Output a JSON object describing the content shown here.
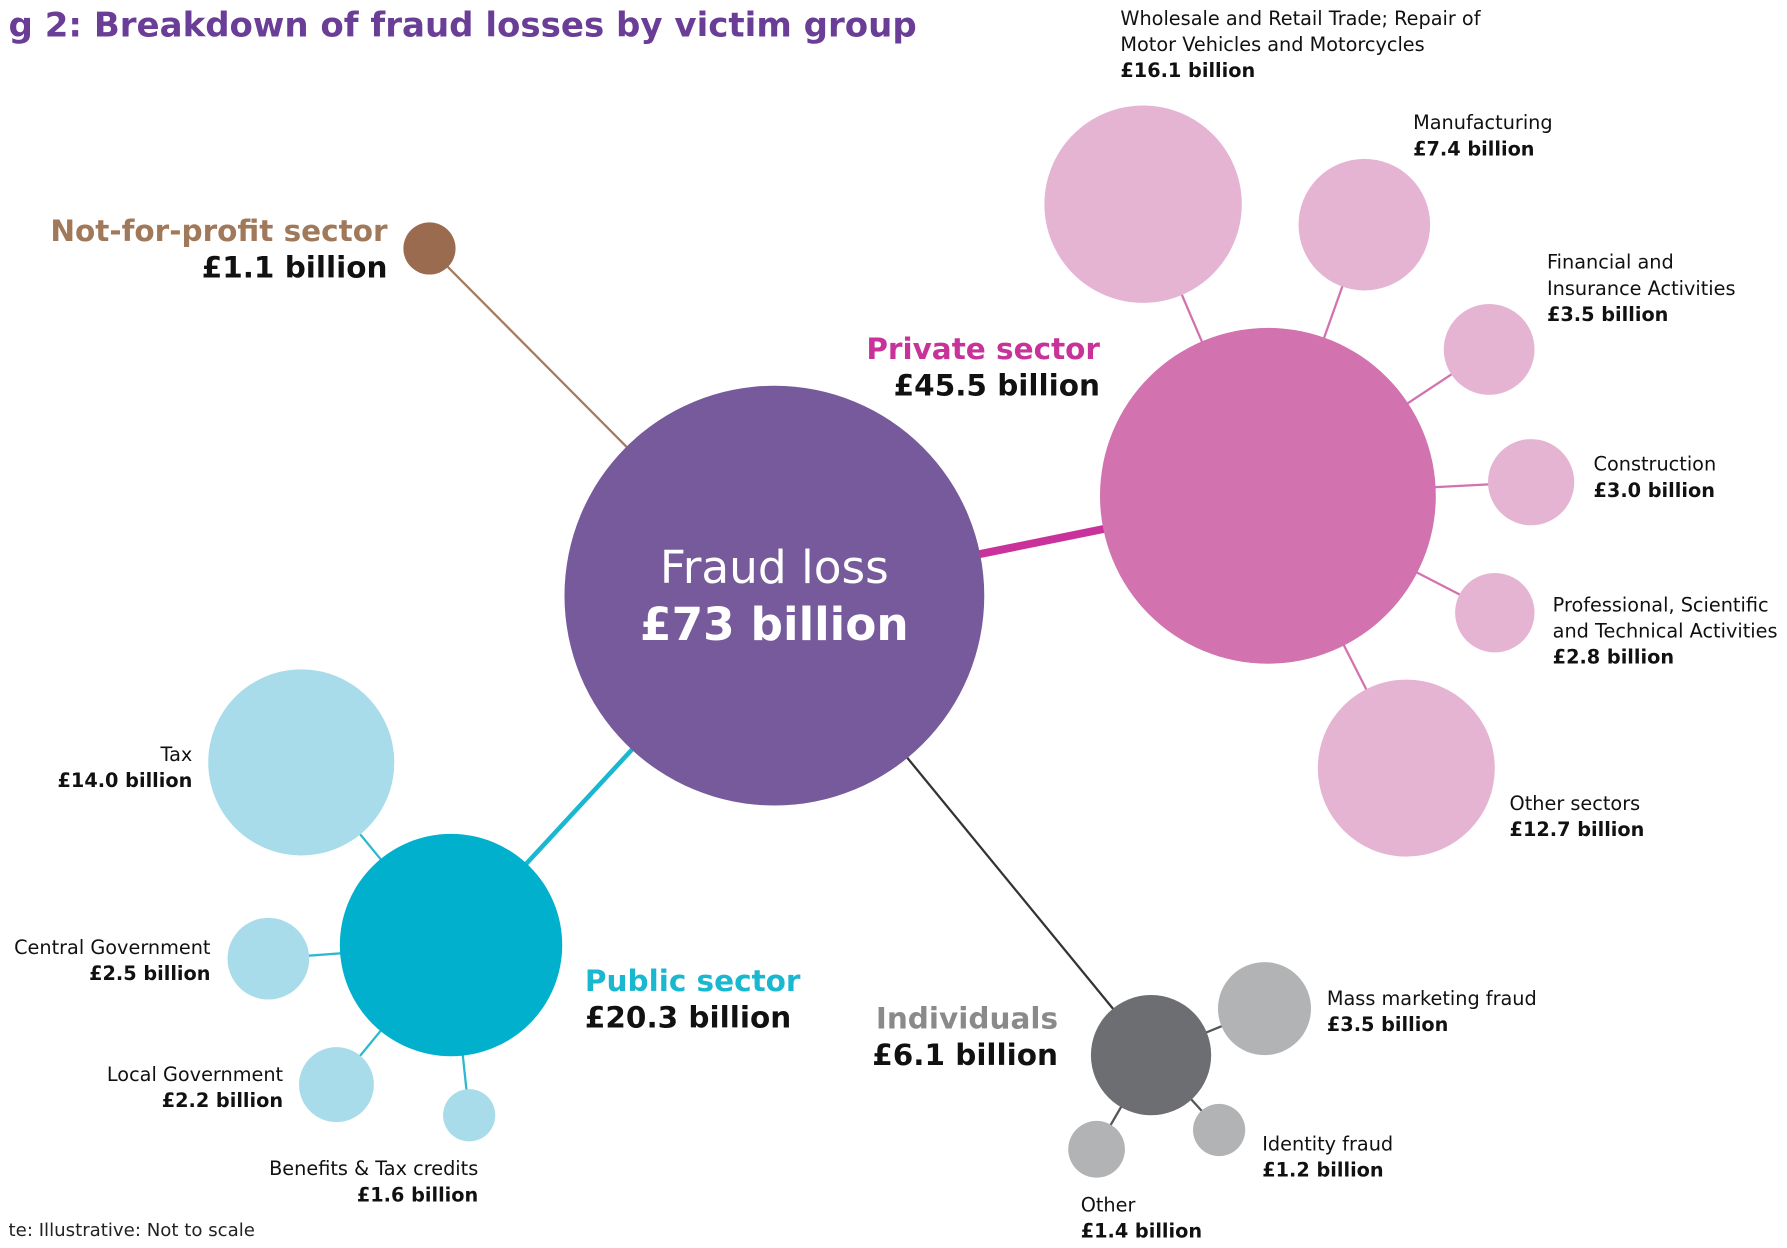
{
  "title": "g 2: Breakdown of fraud losses by victim group",
  "note": "te: Illustrative: Not to scale",
  "center": {
    "label": "Fraud loss",
    "value": "£73 billion"
  },
  "groups": [
    {
      "label": [
        "Not-for-profit sector"
      ],
      "value": "£1.1 billion",
      "children": []
    },
    {
      "label": [
        "Private sector"
      ],
      "value": "£45.5 billion",
      "children": [
        {
          "label": [
            "Wholesale and Retail Trade; Repair of",
            "Motor Vehicles and Motorcycles"
          ],
          "value": "£16.1 billion"
        },
        {
          "label": [
            "Manufacturing"
          ],
          "value": "£7.4 billion"
        },
        {
          "label": [
            "Financial and",
            "Insurance Activities"
          ],
          "value": "£3.5 billion"
        },
        {
          "label": [
            "Construction"
          ],
          "value": "£3.0 billion"
        },
        {
          "label": [
            "Professional, Scientific",
            "and Technical Activities"
          ],
          "value": "£2.8 billion"
        },
        {
          "label": [
            "Other sectors"
          ],
          "value": "£12.7 billion"
        }
      ]
    },
    {
      "label": [
        "Public sector"
      ],
      "value": "£20.3 billion",
      "children": [
        {
          "label": [
            "Tax"
          ],
          "value": "£14.0 billion"
        },
        {
          "label": [
            "Central Government"
          ],
          "value": "£2.5 billion"
        },
        {
          "label": [
            "Local Government"
          ],
          "value": "£2.2 billion"
        },
        {
          "label": [
            "Benefits & Tax credits"
          ],
          "value": "£1.6 billion"
        }
      ]
    },
    {
      "label": [
        "Individuals"
      ],
      "value": "£6.1 billion",
      "children": [
        {
          "label": [
            "Mass marketing fraud"
          ],
          "value": "£3.5 billion"
        },
        {
          "label": [
            "Identity fraud"
          ],
          "value": "£1.2 billion"
        },
        {
          "label": [
            "Other"
          ],
          "value": "£1.4 billion"
        }
      ]
    }
  ]
}
